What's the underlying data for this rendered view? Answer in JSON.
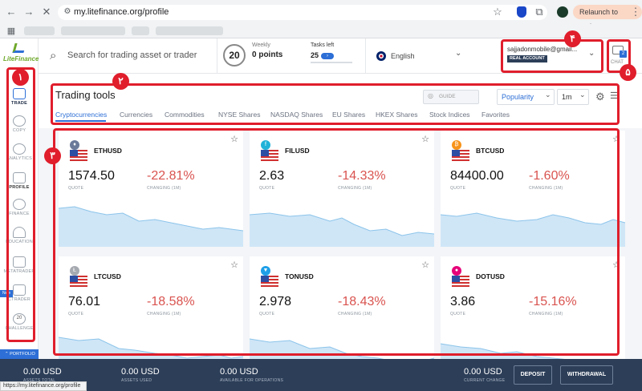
{
  "browser": {
    "url": "my.litefinance.org/profile",
    "relaunch_label": "Relaunch to update",
    "status_url": "https://my.litefinance.org/profile"
  },
  "app": {
    "logo_text": "LiteFinance",
    "search_placeholder": "Search for trading asset or trader",
    "level_badge": "20",
    "weekly_label": "Weekly",
    "weekly_points": "0 points",
    "tasks_label": "Tasks left",
    "tasks_value": "25",
    "language": "English",
    "account_email": "sajjadonmobile@gmail...",
    "account_type": "REAL ACCOUNT",
    "chat_label": "CHAT",
    "chat_count": "2"
  },
  "sidebar": [
    {
      "label": "TRADE"
    },
    {
      "label": "COPY"
    },
    {
      "label": "ANALYTICS"
    },
    {
      "label": "PROFILE"
    },
    {
      "label": "FINANCE"
    },
    {
      "label": "EDUCATION"
    },
    {
      "label": "METATRADER"
    },
    {
      "label": "CTRADER"
    },
    {
      "label": "CHALLENGE"
    }
  ],
  "sidebar_new": "New",
  "sidebar_challenge_num": "20",
  "portfolio_label": "PORTFOLIO",
  "tools": {
    "title": "Trading tools",
    "guide_label": "GUIDE",
    "sort_value": "Popularity",
    "interval_value": "1m",
    "tabs": [
      "Cryptocurrencies",
      "Currencies",
      "Commodities",
      "NYSE Shares",
      "NASDAQ Shares",
      "EU Shares",
      "HKEX Shares",
      "Stock Indices",
      "Favorites"
    ]
  },
  "quote_label": "QUOTE",
  "changing_label": "CHANGING (1M)",
  "cards": [
    {
      "symbol": "ETHUSD",
      "quote": "1574.50",
      "change": "-22.81%",
      "coin_color": "#6b7a99",
      "coin_glyph": "♦"
    },
    {
      "symbol": "FILUSD",
      "quote": "2.63",
      "change": "-14.33%",
      "coin_color": "#20b2d8",
      "coin_glyph": "f"
    },
    {
      "symbol": "BTCUSD",
      "quote": "84400.00",
      "change": "-1.60%",
      "coin_color": "#f7931a",
      "coin_glyph": "₿"
    },
    {
      "symbol": "LTCUSD",
      "quote": "76.01",
      "change": "-18.58%",
      "coin_color": "#a5a9b0",
      "coin_glyph": "Ł"
    },
    {
      "symbol": "TONUSD",
      "quote": "2.978",
      "change": "-18.43%",
      "coin_color": "#1e9fe8",
      "coin_glyph": "▼"
    },
    {
      "symbol": "DOTUSD",
      "quote": "3.86",
      "change": "-15.16%",
      "coin_color": "#e6007a",
      "coin_glyph": "●"
    }
  ],
  "footer": {
    "assets_total": "0.00 USD",
    "assets_total_label": "ASSETS TOTAL",
    "assets_used": "0.00 USD",
    "assets_used_label": "ASSETS USED",
    "available": "0.00 USD",
    "available_label": "AVAILABLE FOR OPERATIONS",
    "current_change": "0.00 USD",
    "current_change_label": "CURRENT CHANGE",
    "deposit_label": "DEPOSIT",
    "withdrawal_label": "WITHDRAWAL"
  },
  "annotations": [
    "۱",
    "۲",
    "۳",
    "۴",
    "۵"
  ]
}
